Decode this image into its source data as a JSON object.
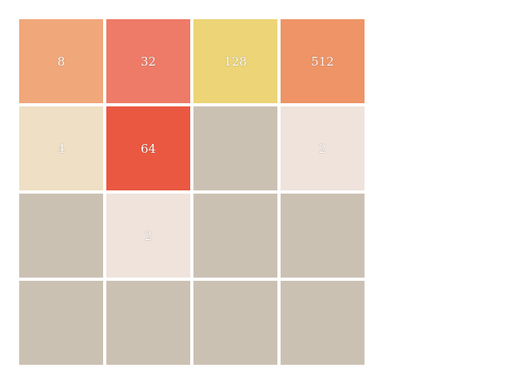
{
  "board": {
    "tiles": [
      {
        "value": "8",
        "color": "#f0a77a"
      },
      {
        "value": "32",
        "color": "#ee7b67"
      },
      {
        "value": "128",
        "color": "#ecd477"
      },
      {
        "value": "512",
        "color": "#ef9466"
      },
      {
        "value": "4",
        "color": "#efdfc4"
      },
      {
        "value": "64",
        "color": "#eb5841"
      },
      {
        "value": "",
        "color": "#cbc1b3"
      },
      {
        "value": "2",
        "color": "#efe3dc"
      },
      {
        "value": "",
        "color": "#cbc1b3"
      },
      {
        "value": "2",
        "color": "#efe3dc"
      },
      {
        "value": "",
        "color": "#cbc1b3"
      },
      {
        "value": "",
        "color": "#cbc1b3"
      },
      {
        "value": "",
        "color": "#cbc1b3"
      },
      {
        "value": "",
        "color": "#cbc1b3"
      },
      {
        "value": "",
        "color": "#cbc1b3"
      },
      {
        "value": "",
        "color": "#cbc1b3"
      }
    ]
  },
  "score_panel": {
    "text": ""
  }
}
